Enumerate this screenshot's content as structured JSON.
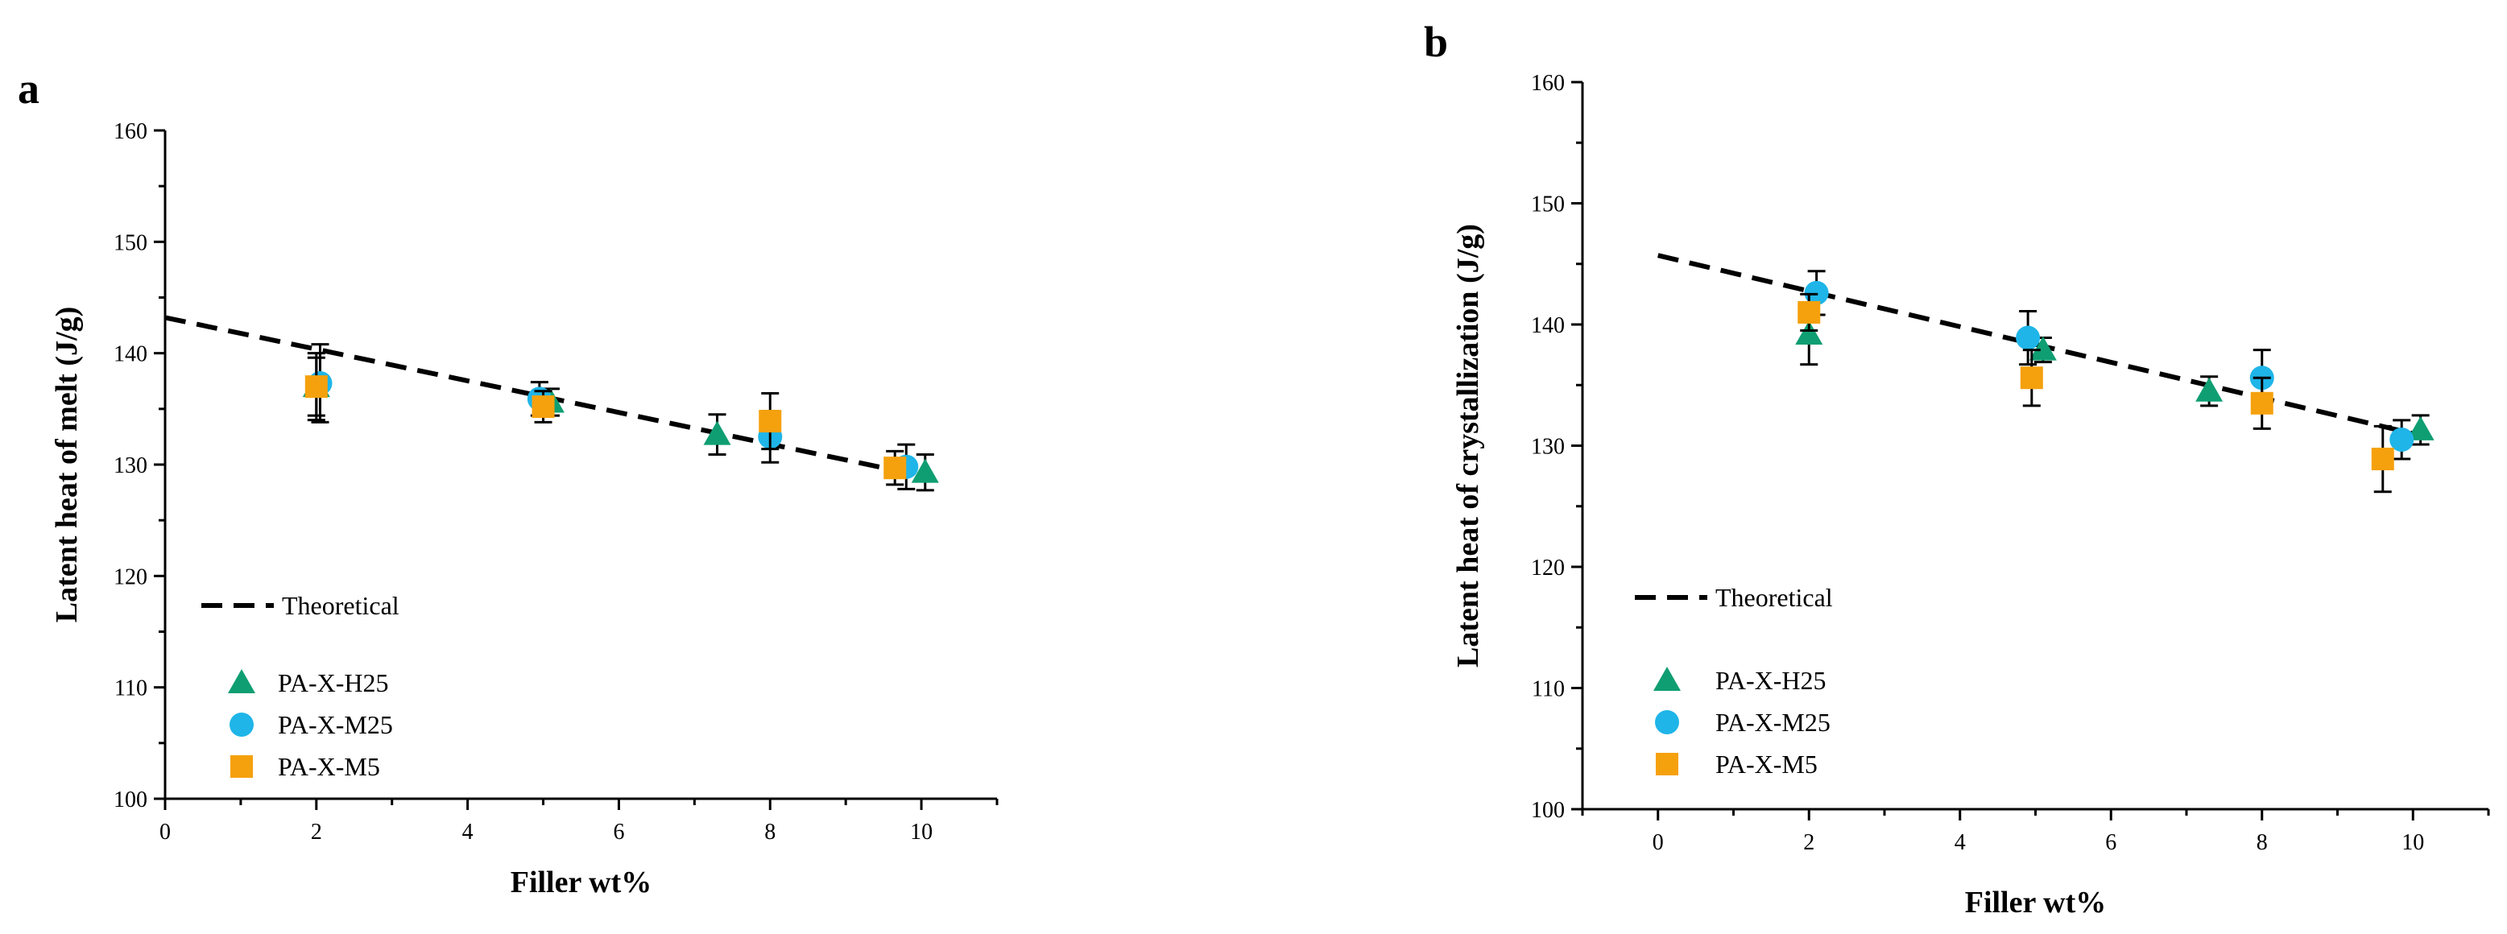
{
  "colors": {
    "H25": "#0f9e72",
    "M25": "#1fb5e8",
    "M5": "#f5a10e",
    "theory": "#000000"
  },
  "chart_data": [
    {
      "type": "scatter",
      "panel": "a",
      "xlabel": "Filler wt%",
      "ylabel": "Latent heat of melt (J/g)",
      "xlim": [
        0,
        11
      ],
      "ylim": [
        100,
        160
      ],
      "xticks": [
        "0",
        "2",
        "4",
        "6",
        "8",
        "10"
      ],
      "yticks": [
        "100",
        "110",
        "120",
        "130",
        "140",
        "150",
        "160"
      ],
      "theoretical": {
        "name": "Theoretical",
        "x": [
          0,
          10
        ],
        "y": [
          143.2,
          129.0
        ]
      },
      "legend_position": "lower-left",
      "series": [
        {
          "key": "H25",
          "name": "PA-X-H25",
          "marker": "triangle",
          "x": [
            2.0,
            5.1,
            7.3,
            10.05
          ],
          "y": [
            137.0,
            135.6,
            132.7,
            129.3
          ],
          "err": [
            3.0,
            1.2,
            1.8,
            1.6
          ]
        },
        {
          "key": "M25",
          "name": "PA-X-M25",
          "marker": "circle",
          "x": [
            2.05,
            4.95,
            8.0,
            9.8
          ],
          "y": [
            137.3,
            135.9,
            132.5,
            129.8
          ],
          "err": [
            3.5,
            1.5,
            2.3,
            2.0
          ]
        },
        {
          "key": "M5",
          "name": "PA-X-M5",
          "marker": "square",
          "x": [
            2.0,
            5.0,
            8.0,
            9.65
          ],
          "y": [
            137.0,
            135.2,
            133.9,
            129.7
          ],
          "err": [
            2.6,
            1.4,
            2.5,
            1.5
          ]
        }
      ]
    },
    {
      "type": "scatter",
      "panel": "b",
      "xlabel": "Filler wt%",
      "ylabel": "Latent heat of crystallization (J/g)",
      "xlim": [
        -1,
        11
      ],
      "ylim": [
        100,
        160
      ],
      "xticks": [
        "0",
        "2",
        "4",
        "6",
        "8",
        "10"
      ],
      "yticks": [
        "100",
        "110",
        "120",
        "130",
        "140",
        "150",
        "160"
      ],
      "theoretical": {
        "name": "Theoretical",
        "x": [
          0,
          10
        ],
        "y": [
          145.7,
          131.0
        ]
      },
      "legend_position": "lower-left",
      "series": [
        {
          "key": "H25",
          "name": "PA-X-H25",
          "marker": "triangle",
          "x": [
            2.0,
            5.1,
            7.3,
            10.1
          ],
          "y": [
            139.2,
            137.9,
            134.5,
            131.3
          ],
          "err": [
            2.5,
            1.0,
            1.2,
            1.2
          ]
        },
        {
          "key": "M25",
          "name": "PA-X-M25",
          "marker": "circle",
          "x": [
            2.1,
            4.9,
            8.0,
            9.85
          ],
          "y": [
            142.6,
            138.9,
            135.6,
            130.5
          ],
          "err": [
            1.8,
            2.2,
            2.3,
            1.6
          ]
        },
        {
          "key": "M5",
          "name": "PA-X-M5",
          "marker": "square",
          "x": [
            2.0,
            4.95,
            8.0,
            9.6
          ],
          "y": [
            141.0,
            135.6,
            133.5,
            128.9
          ],
          "err": [
            1.5,
            2.3,
            2.1,
            2.7
          ]
        }
      ]
    }
  ]
}
